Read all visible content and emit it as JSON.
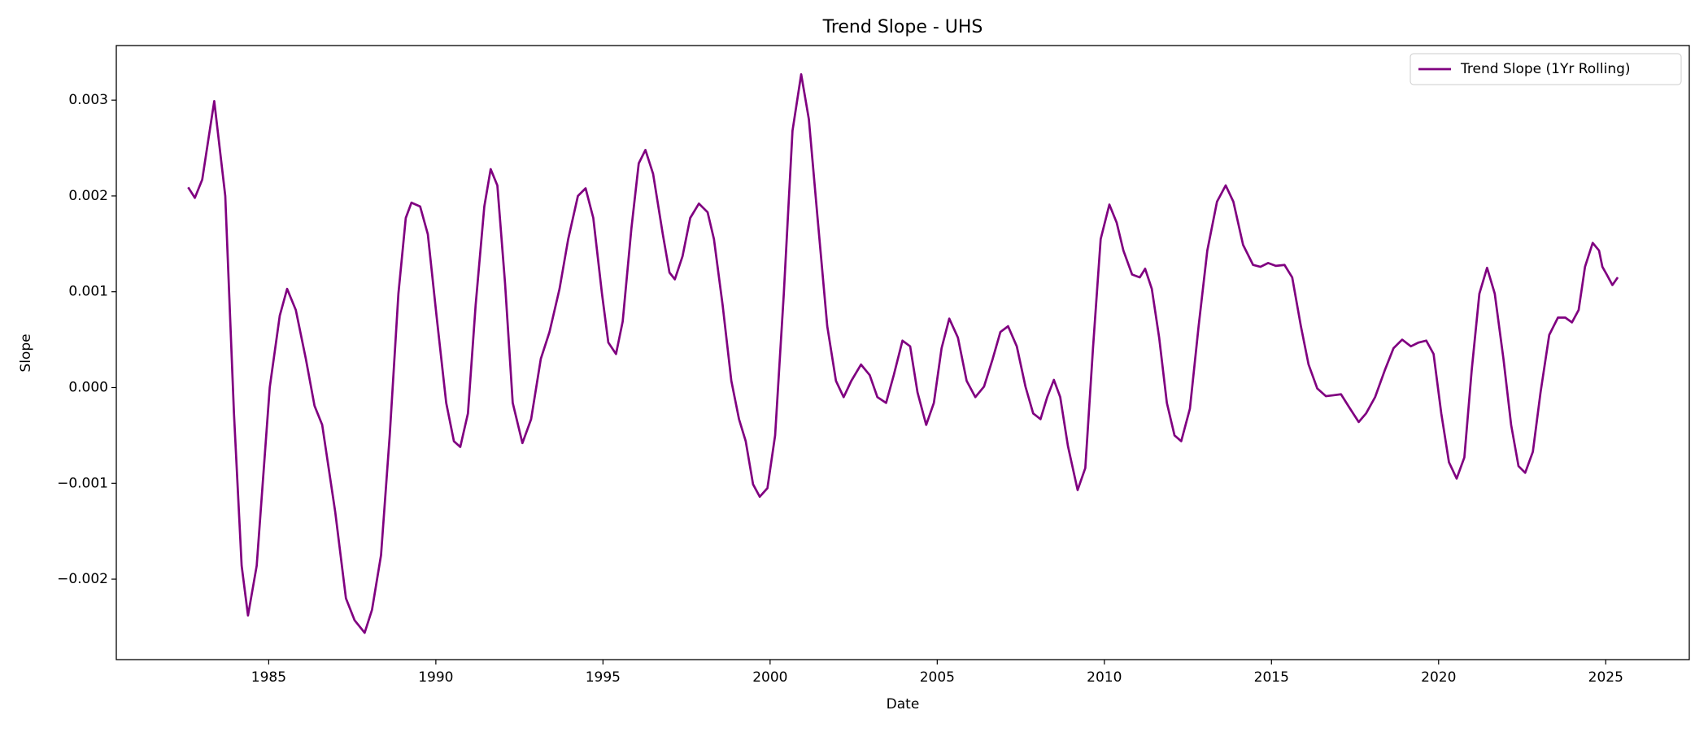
{
  "chart_data": {
    "type": "line",
    "title": "Trend Slope - UHS",
    "xlabel": "Date",
    "ylabel": "Slope",
    "series": [
      {
        "name": "Trend Slope (1Yr Rolling)",
        "color": "#800080",
        "x": [
          1982.59,
          1982.79,
          1983.01,
          1983.37,
          1983.7,
          1983.96,
          1984.19,
          1984.38,
          1984.64,
          1985.03,
          1985.33,
          1985.55,
          1985.81,
          1986.11,
          1986.37,
          1986.6,
          1986.99,
          1987.31,
          1987.57,
          1987.87,
          1988.09,
          1988.36,
          1988.62,
          1988.88,
          1989.1,
          1989.27,
          1989.53,
          1989.76,
          1990.02,
          1990.31,
          1990.54,
          1990.73,
          1990.96,
          1991.19,
          1991.45,
          1991.64,
          1991.84,
          1992.07,
          1992.3,
          1992.59,
          1992.85,
          1993.14,
          1993.4,
          1993.7,
          1993.96,
          1994.25,
          1994.48,
          1994.71,
          1994.97,
          1995.16,
          1995.39,
          1995.59,
          1995.85,
          1996.07,
          1996.27,
          1996.5,
          1996.79,
          1996.99,
          1997.15,
          1997.38,
          1997.61,
          1997.87,
          1998.13,
          1998.32,
          1998.58,
          1998.84,
          1999.07,
          1999.27,
          1999.49,
          1999.69,
          1999.92,
          2000.15,
          2000.41,
          2000.67,
          2000.93,
          2001.16,
          2001.42,
          2001.71,
          2001.97,
          2002.2,
          2002.43,
          2002.72,
          2002.98,
          2003.21,
          2003.47,
          2003.7,
          2003.96,
          2004.19,
          2004.41,
          2004.67,
          2004.9,
          2005.13,
          2005.36,
          2005.62,
          2005.88,
          2006.14,
          2006.4,
          2006.66,
          2006.89,
          2007.12,
          2007.38,
          2007.64,
          2007.87,
          2008.09,
          2008.29,
          2008.49,
          2008.68,
          2008.91,
          2009.2,
          2009.43,
          2009.66,
          2009.89,
          2010.15,
          2010.37,
          2010.57,
          2010.83,
          2011.06,
          2011.22,
          2011.42,
          2011.64,
          2011.87,
          2012.1,
          2012.3,
          2012.56,
          2012.82,
          2013.08,
          2013.37,
          2013.63,
          2013.86,
          2014.15,
          2014.45,
          2014.67,
          2014.9,
          2015.13,
          2015.39,
          2015.62,
          2015.88,
          2016.11,
          2016.37,
          2016.63,
          2016.86,
          2017.08,
          2017.35,
          2017.61,
          2017.83,
          2018.1,
          2018.39,
          2018.65,
          2018.91,
          2019.17,
          2019.4,
          2019.63,
          2019.85,
          2020.08,
          2020.31,
          2020.54,
          2020.77,
          2020.99,
          2021.22,
          2021.45,
          2021.68,
          2021.94,
          2022.17,
          2022.39,
          2022.59,
          2022.82,
          2023.05,
          2023.31,
          2023.57,
          2023.79,
          2023.99,
          2024.19,
          2024.38,
          2024.61,
          2024.8,
          2024.9,
          2025.03,
          2025.2,
          2025.36
        ],
        "values": [
          0.00209,
          0.00198,
          0.00217,
          0.00299,
          0.002,
          -0.00027,
          -0.00186,
          -0.00238,
          -0.00186,
          0.0,
          0.00075,
          0.00103,
          0.00081,
          0.0003,
          -0.00019,
          -0.00039,
          -0.0013,
          -0.0022,
          -0.00243,
          -0.00256,
          -0.00232,
          -0.00175,
          -0.0005,
          0.00098,
          0.00177,
          0.00193,
          0.00189,
          0.0016,
          0.00075,
          -0.00016,
          -0.00056,
          -0.00062,
          -0.00027,
          0.00086,
          0.00189,
          0.00228,
          0.00211,
          0.00109,
          -0.00016,
          -0.00058,
          -0.00033,
          0.0003,
          0.00058,
          0.00103,
          0.00155,
          0.002,
          0.00208,
          0.00177,
          0.00098,
          0.00047,
          0.00035,
          0.00069,
          0.00166,
          0.00234,
          0.00248,
          0.00223,
          0.0016,
          0.0012,
          0.00113,
          0.00137,
          0.00177,
          0.00192,
          0.00183,
          0.00155,
          0.00086,
          7e-05,
          -0.00033,
          -0.00056,
          -0.00101,
          -0.00114,
          -0.00105,
          -0.0005,
          0.00098,
          0.00268,
          0.00327,
          0.0028,
          0.00177,
          0.00064,
          7e-05,
          -0.0001,
          7e-05,
          0.00024,
          0.00013,
          -0.0001,
          -0.00016,
          0.00013,
          0.00049,
          0.00043,
          -5e-05,
          -0.00039,
          -0.00016,
          0.00041,
          0.00072,
          0.00052,
          7e-05,
          -0.0001,
          1e-05,
          0.0003,
          0.00058,
          0.00064,
          0.00043,
          1e-05,
          -0.00027,
          -0.00033,
          -0.0001,
          8e-05,
          -0.0001,
          -0.00061,
          -0.00107,
          -0.00084,
          0.00041,
          0.00155,
          0.00191,
          0.00172,
          0.00143,
          0.00118,
          0.00115,
          0.00124,
          0.00103,
          0.00052,
          -0.00016,
          -0.0005,
          -0.00056,
          -0.00022,
          0.00064,
          0.00143,
          0.00194,
          0.00211,
          0.00194,
          0.00149,
          0.00128,
          0.00126,
          0.0013,
          0.00127,
          0.00128,
          0.00115,
          0.00064,
          0.00024,
          -1e-05,
          -9e-05,
          -8e-05,
          -7e-05,
          -0.00022,
          -0.00036,
          -0.00027,
          -0.0001,
          0.00018,
          0.00041,
          0.0005,
          0.00043,
          0.00047,
          0.00049,
          0.00035,
          -0.00027,
          -0.00078,
          -0.00095,
          -0.00073,
          0.00018,
          0.00098,
          0.00125,
          0.00098,
          0.0003,
          -0.00039,
          -0.00082,
          -0.00089,
          -0.00067,
          -5e-05,
          0.00055,
          0.00073,
          0.00073,
          0.00068,
          0.00081,
          0.00126,
          0.00151,
          0.00143,
          0.00126,
          0.00118,
          0.00107,
          0.00115
        ]
      }
    ],
    "xlim": [
      1980.44,
      2027.5
    ],
    "xticks": [
      1985,
      1990,
      1995,
      2000,
      2005,
      2010,
      2015,
      2020,
      2025
    ],
    "ylim": [
      -0.00284,
      0.00357
    ],
    "yticks": [
      {
        "value": -0.002,
        "label": "−0.002"
      },
      {
        "value": -0.001,
        "label": "−0.001"
      },
      {
        "value": 0,
        "label": "0.000"
      },
      0.001,
      0.002,
      0.003
    ],
    "grid": false,
    "legend": "upper right"
  }
}
